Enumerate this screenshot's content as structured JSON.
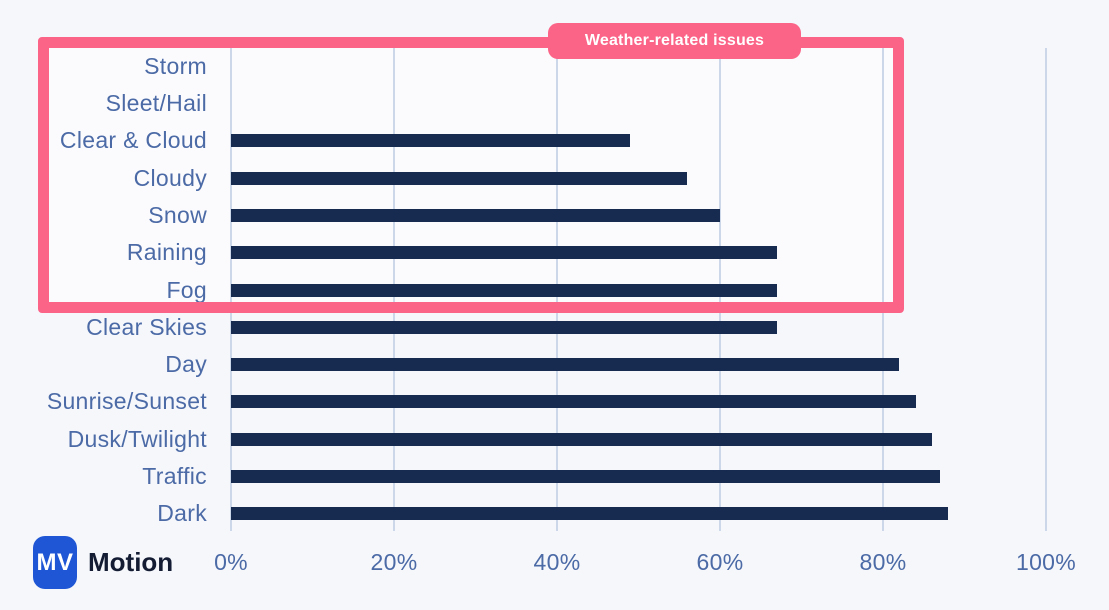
{
  "annotation": {
    "label": "Weather-related issues"
  },
  "logo": {
    "monogram": "MV",
    "brand": "Motion"
  },
  "colors": {
    "background": "#f5f7fb",
    "bar": "#172a4f",
    "highlight_pink": "#fb6387",
    "category_label": "#4b6aa6",
    "gridline": "#ccd7e9",
    "logo_blue": "#1e56d5",
    "brand_text": "#141c33",
    "badge_text": "#ffffff"
  },
  "chart_data": {
    "type": "bar",
    "orientation": "horizontal",
    "title": "",
    "xlabel": "",
    "ylabel": "",
    "categories": [
      "Storm",
      "Sleet/Hail",
      "Clear & Cloud",
      "Cloudy",
      "Snow",
      "Raining",
      "Fog",
      "Clear Skies",
      "Day",
      "Sunrise/Sunset",
      "Dusk/Twilight",
      "Traffic",
      "Dark"
    ],
    "values": [
      0,
      0,
      49,
      56,
      60,
      67,
      67,
      67,
      82,
      84,
      86,
      87,
      88
    ],
    "unit": "%",
    "xlim": [
      0,
      100
    ],
    "x_ticks": [
      "0%",
      "20%",
      "40%",
      "60%",
      "80%",
      "100%"
    ],
    "x_tick_values": [
      0,
      20,
      40,
      60,
      80,
      100
    ],
    "grid": "vertical-gridlines-on",
    "legend": "none",
    "annotation": "Weather-related issues",
    "highlighted_categories": [
      "Storm",
      "Sleet/Hail",
      "Clear & Cloud",
      "Cloudy",
      "Snow",
      "Raining",
      "Fog"
    ]
  }
}
